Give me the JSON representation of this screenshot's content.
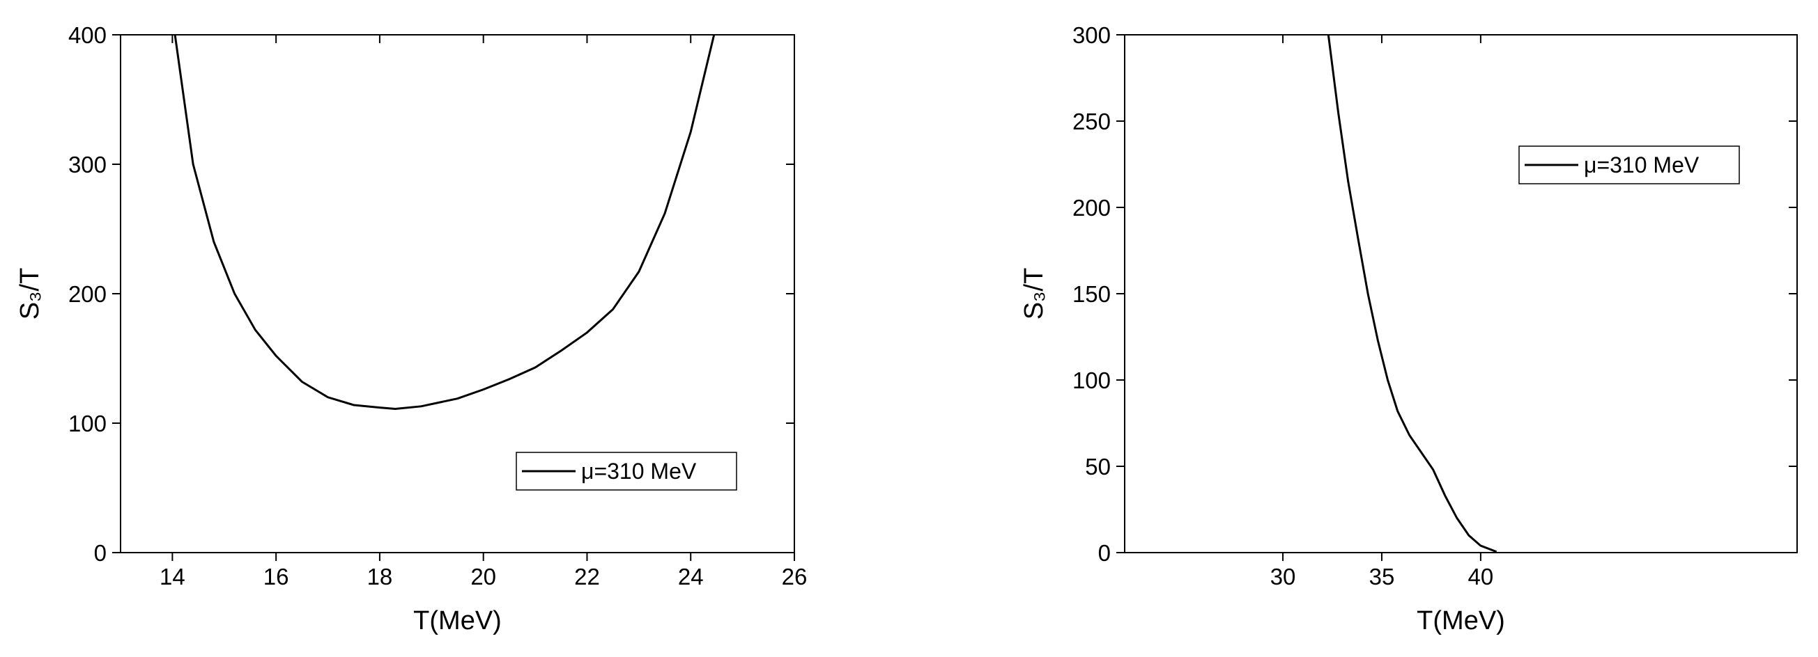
{
  "chart_data": [
    {
      "type": "line",
      "x_label": "T(MeV)",
      "y_label": "S₃/T",
      "x": [
        14.05,
        14.4,
        14.8,
        15.2,
        15.6,
        16,
        16.5,
        17,
        17.5,
        18,
        18.3,
        18.8,
        19.5,
        20,
        20.5,
        21,
        21.5,
        22,
        22.5,
        23,
        23.5,
        24,
        24.45
      ],
      "series": [
        {
          "name": "μ=310 MeV",
          "color": "#000000",
          "values": [
            400,
            300,
            240,
            200,
            172,
            152,
            132,
            120,
            114,
            112,
            111,
            113,
            119,
            126,
            134,
            143,
            156,
            170,
            188,
            217,
            262,
            325,
            400
          ]
        }
      ],
      "xlim": [
        13,
        26
      ],
      "xticks": [
        14,
        16,
        18,
        20,
        22,
        24,
        26
      ],
      "ylim": [
        0,
        400
      ],
      "yticks": [
        0,
        100,
        200,
        300,
        400
      ],
      "legend": "lower right"
    },
    {
      "type": "line",
      "x_label": "T(MeV)",
      "y_label": "S₃/T",
      "x": [
        32.3,
        32.8,
        33.3,
        33.8,
        34.3,
        34.8,
        35.3,
        35.8,
        36.4,
        37,
        37.6,
        38.2,
        38.8,
        39.4,
        40,
        40.8
      ],
      "series": [
        {
          "name": "μ=310 MeV",
          "color": "#000000",
          "values": [
            300,
            255,
            215,
            182,
            150,
            123,
            100,
            82,
            68,
            58,
            48,
            33,
            20,
            10,
            4,
            0.5
          ]
        }
      ],
      "xlim": [
        22,
        56
      ],
      "xticks": [
        30,
        35,
        40
      ],
      "ylim": [
        0,
        300
      ],
      "yticks": [
        0,
        50,
        100,
        150,
        200,
        250,
        300
      ],
      "legend": "upper right"
    }
  ]
}
